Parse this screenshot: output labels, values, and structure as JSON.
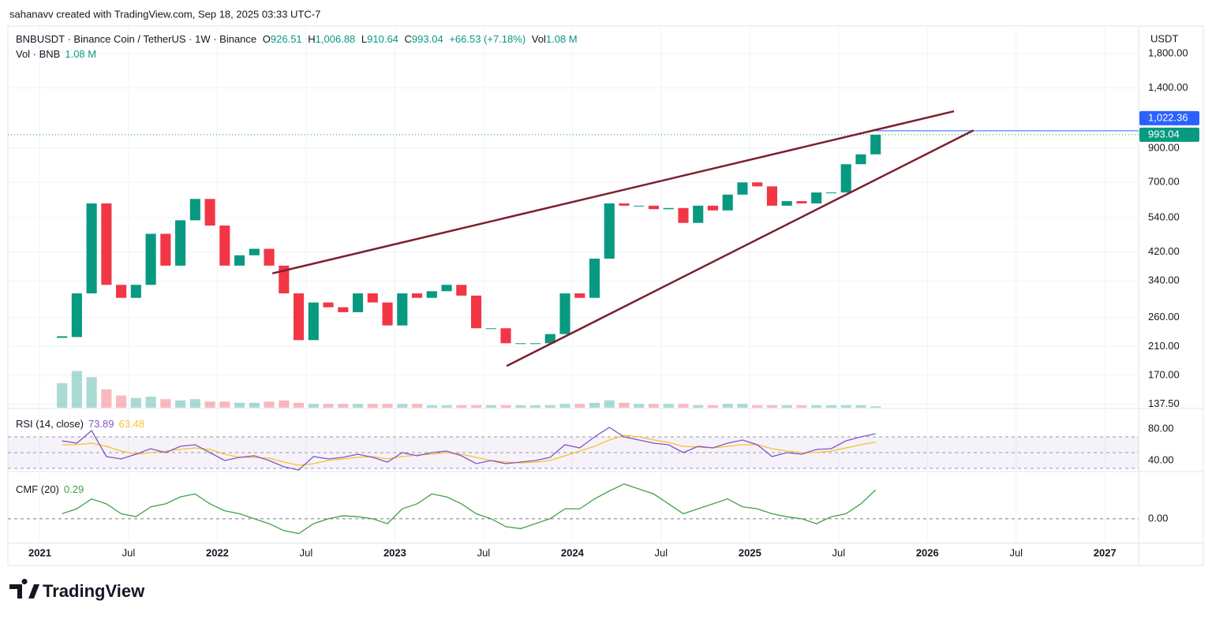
{
  "credit": "sahanavv created with TradingView.com, Sep 18, 2025 03:33 UTC-7",
  "logo": "TradingView",
  "chart_data": {
    "type": "candlestick",
    "header": {
      "symbol": "BNBUSDT · Binance Coin / TetherUS · 1W · Binance",
      "open_label": "O",
      "open": "926.51",
      "high_label": "H",
      "high": "1,006.88",
      "low_label": "L",
      "low": "910.64",
      "close_label": "C",
      "close": "993.04",
      "change": "+66.53 (+7.18%)",
      "vol_label": "Vol",
      "vol": "1.08 M",
      "vol_legend": "Vol · BNB",
      "vol_legend_value": "1.08 M"
    },
    "y_unit": "USDT",
    "log_scale": true,
    "x": [
      "2021-02",
      "2021-03",
      "2021-04",
      "2021-05",
      "2021-06",
      "2021-07",
      "2021-08",
      "2021-09",
      "2021-10",
      "2021-11",
      "2021-12",
      "2022-01",
      "2022-02",
      "2022-03",
      "2022-04",
      "2022-05",
      "2022-06",
      "2022-07",
      "2022-08",
      "2022-09",
      "2022-10",
      "2022-11",
      "2022-12",
      "2023-01",
      "2023-02",
      "2023-03",
      "2023-04",
      "2023-05",
      "2023-06",
      "2023-07",
      "2023-08",
      "2023-09",
      "2023-10",
      "2023-11",
      "2023-12",
      "2024-01",
      "2024-02",
      "2024-03",
      "2024-04",
      "2024-05",
      "2024-06",
      "2024-07",
      "2024-08",
      "2024-09",
      "2024-10",
      "2024-11",
      "2024-12",
      "2025-01",
      "2025-02",
      "2025-03",
      "2025-04",
      "2025-05",
      "2025-06",
      "2025-07",
      "2025-08",
      "2025-09"
    ],
    "xlim": [
      2020.82,
      2027.19
    ],
    "xticks": [
      2021,
      {
        "value": 2021.5,
        "label": "Jul"
      },
      2022,
      {
        "value": 2022.5,
        "label": "Jul"
      },
      2023,
      {
        "value": 2023.5,
        "label": "Jul"
      },
      2024,
      {
        "value": 2024.5,
        "label": "Jul"
      },
      2025,
      {
        "value": 2025.5,
        "label": "Jul"
      },
      2026,
      {
        "value": 2026.5,
        "label": "Jul"
      },
      2027
    ],
    "close": [
      225,
      310,
      600,
      330,
      300,
      330,
      480,
      380,
      530,
      620,
      510,
      380,
      410,
      430,
      380,
      310,
      220,
      290,
      280,
      270,
      310,
      290,
      245,
      310,
      300,
      315,
      330,
      305,
      240,
      240,
      215,
      215,
      215,
      230,
      310,
      300,
      400,
      600,
      590,
      590,
      575,
      580,
      520,
      590,
      570,
      640,
      700,
      680,
      590,
      610,
      600,
      650,
      650,
      800,
      860,
      993.04
    ],
    "up_color": "#089981",
    "down_color": "#f23645",
    "ylim": [
      134,
      2180
    ],
    "yticks": [
      {
        "value": 137.5,
        "label": "137.50"
      },
      {
        "value": 170,
        "label": "170.00"
      },
      {
        "value": 210,
        "label": "210.00"
      },
      {
        "value": 260,
        "label": "260.00"
      },
      {
        "value": 340,
        "label": "340.00"
      },
      {
        "value": 420,
        "label": "420.00"
      },
      {
        "value": 540,
        "label": "540.00"
      },
      {
        "value": 700,
        "label": "700.00"
      },
      {
        "value": 900,
        "label": "900.00"
      },
      {
        "value": 1400,
        "label": "1,400.00"
      },
      {
        "value": 1800,
        "label": "1,800.00"
      }
    ],
    "grid": true,
    "price_lines": [
      {
        "value": 1022.36,
        "label": "1,022.36",
        "color": "#2962ff"
      },
      {
        "value": 993.04,
        "label": "993.04",
        "color": "#089981"
      }
    ],
    "trendlines": [
      {
        "x": [
          2022.31,
          2026.15
        ],
        "y": [
          359,
          1180
        ],
        "color": "#7b1f2e"
      },
      {
        "x": [
          2023.63,
          2026.26
        ],
        "y": [
          182,
          1026
        ],
        "color": "#7b1f2e"
      }
    ],
    "volume": [
      20,
      30,
      25,
      15,
      10,
      8,
      9,
      7,
      6,
      7,
      5,
      5,
      4,
      4,
      5,
      6,
      4,
      3,
      3,
      3,
      3,
      3,
      3,
      3,
      3,
      2,
      2,
      2,
      2,
      2,
      2,
      2,
      2,
      2,
      3,
      3,
      4,
      6,
      4,
      3,
      3,
      3,
      3,
      2,
      2,
      3,
      3,
      2,
      2,
      2,
      2,
      2,
      2,
      2,
      2,
      1.08
    ],
    "volume_lim": [
      0,
      40
    ],
    "rsi": {
      "name": "RSI (14, close)",
      "value_label": "73.89",
      "ma_label": "63.48",
      "color": "#7e57c2",
      "ma_color": "#f7c325",
      "values": [
        65,
        62,
        78,
        45,
        42,
        48,
        55,
        50,
        58,
        60,
        50,
        40,
        44,
        46,
        40,
        32,
        28,
        45,
        42,
        44,
        48,
        44,
        38,
        50,
        46,
        50,
        52,
        46,
        36,
        40,
        36,
        38,
        40,
        44,
        60,
        56,
        70,
        82,
        70,
        66,
        62,
        60,
        50,
        58,
        56,
        62,
        66,
        60,
        45,
        50,
        48,
        54,
        55,
        65,
        70,
        73.89
      ],
      "ma": [
        60,
        60,
        62,
        58,
        52,
        48,
        50,
        52,
        54,
        56,
        54,
        48,
        44,
        44,
        43,
        38,
        34,
        36,
        40,
        42,
        44,
        45,
        42,
        45,
        47,
        48,
        50,
        48,
        44,
        40,
        38,
        37,
        38,
        40,
        46,
        52,
        58,
        66,
        72,
        70,
        66,
        63,
        58,
        57,
        56,
        58,
        60,
        60,
        55,
        52,
        50,
        50,
        52,
        56,
        60,
        63.48
      ],
      "bands": [
        70,
        50,
        30
      ],
      "ylim": [
        27,
        104
      ],
      "yticks": [
        {
          "value": 80,
          "label": "80.00"
        },
        {
          "value": 40,
          "label": "40.00"
        }
      ]
    },
    "cmf": {
      "name": "CMF (20)",
      "value_label": "0.29",
      "color": "#43a047",
      "values": [
        0.05,
        0.1,
        0.2,
        0.15,
        0.05,
        0.02,
        0.12,
        0.15,
        0.22,
        0.25,
        0.15,
        0.08,
        0.05,
        0.0,
        -0.05,
        -0.12,
        -0.15,
        -0.05,
        0.0,
        0.03,
        0.02,
        0.0,
        -0.05,
        0.1,
        0.15,
        0.25,
        0.22,
        0.15,
        0.05,
        0.0,
        -0.08,
        -0.1,
        -0.05,
        0.0,
        0.1,
        0.1,
        0.2,
        0.28,
        0.35,
        0.3,
        0.25,
        0.15,
        0.05,
        0.1,
        0.15,
        0.2,
        0.12,
        0.1,
        0.05,
        0.02,
        0.0,
        -0.05,
        0.02,
        0.05,
        0.15,
        0.29
      ],
      "ylim": [
        -0.24,
        0.46
      ],
      "yticks": [
        {
          "value": 0,
          "label": "0.00"
        }
      ]
    }
  }
}
